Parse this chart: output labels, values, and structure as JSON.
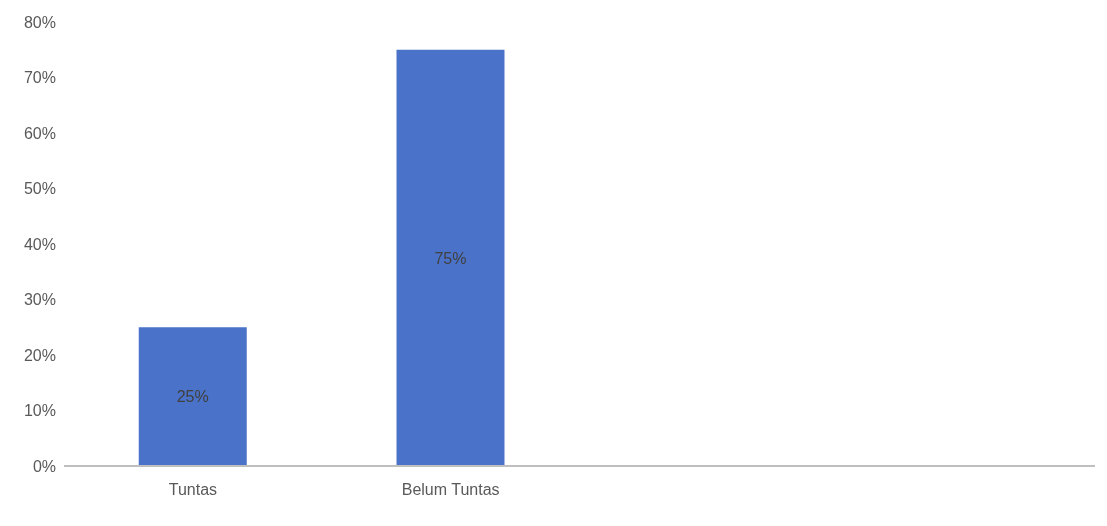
{
  "chart_data": {
    "type": "bar",
    "categories": [
      "Tuntas",
      "Belum Tuntas",
      null,
      null
    ],
    "values": [
      25,
      75,
      null,
      null
    ],
    "color": "#4a72c8",
    "value_labels": [
      "25%",
      "75%",
      null,
      null
    ],
    "ylim": [
      0,
      80
    ],
    "yticks": [
      {
        "value": 0,
        "label": "0%"
      },
      {
        "value": 10,
        "label": "10%"
      },
      {
        "value": 20,
        "label": "20%"
      },
      {
        "value": 30,
        "label": "30%"
      },
      {
        "value": 40,
        "label": "40%"
      },
      {
        "value": 50,
        "label": "50%"
      },
      {
        "value": 60,
        "label": "60%"
      },
      {
        "value": 70,
        "label": "70%"
      },
      {
        "value": 80,
        "label": "80%"
      }
    ],
    "grid": false,
    "legend": false
  }
}
